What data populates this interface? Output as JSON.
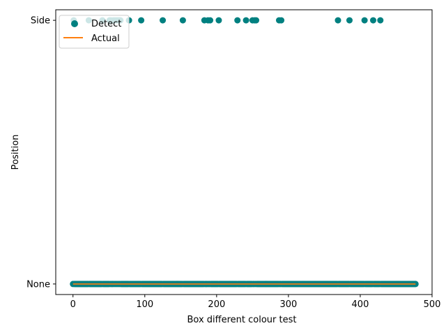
{
  "chart_data": {
    "type": "scatter",
    "title": "",
    "xlabel": "Box different colour  test",
    "ylabel": "Position",
    "xlim": [
      -24,
      500
    ],
    "ylim": [
      -0.04,
      1.04
    ],
    "x_ticks": [
      0,
      100,
      200,
      300,
      400,
      500
    ],
    "y_categories": [
      "None",
      "Side"
    ],
    "grid": false,
    "legend_placement": "upper-left",
    "series": [
      {
        "name": "Detect",
        "kind": "points",
        "color": "#008080",
        "side_x": [
          1,
          22,
          41,
          51,
          53,
          56,
          58,
          60,
          62,
          64,
          66,
          78,
          95,
          125,
          153,
          183,
          188,
          191,
          203,
          229,
          241,
          250,
          253,
          255,
          287,
          290,
          369,
          385,
          406,
          418,
          428
        ],
        "none_x_range": [
          0,
          477,
          1
        ]
      },
      {
        "name": "Actual",
        "kind": "line",
        "color": "#ff7f0e",
        "x": [
          0,
          477
        ],
        "y": [
          0,
          0
        ]
      }
    ]
  }
}
